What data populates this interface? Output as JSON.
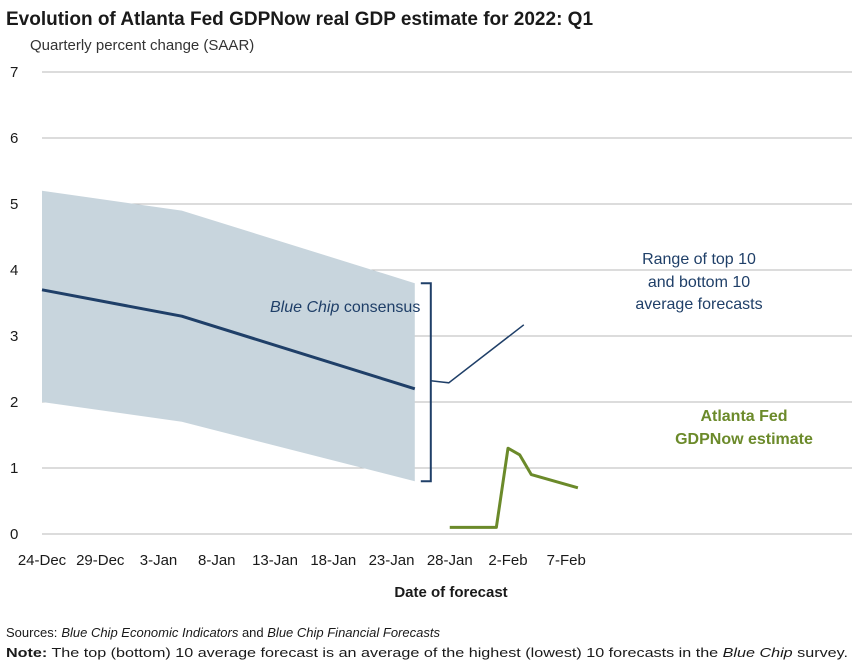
{
  "chart_data": {
    "type": "line",
    "title": "Evolution of Atlanta Fed GDPNow real GDP estimate for 2022: Q1",
    "subtitle": "Quarterly percent change (SAAR)",
    "xlabel": "Date of forecast",
    "ylabel": "",
    "ylim": [
      0,
      7
    ],
    "y_ticks": [
      "0",
      "1",
      "2",
      "3",
      "4",
      "5",
      "6",
      "7"
    ],
    "x_ticks": [
      "24-Dec",
      "29-Dec",
      "3-Jan",
      "8-Jan",
      "13-Jan",
      "18-Jan",
      "23-Jan",
      "28-Jan",
      "2-Feb",
      "7-Feb"
    ],
    "grid": true,
    "series": [
      {
        "name": "Blue Chip consensus",
        "color": "#1f3f68",
        "points": [
          {
            "x": "24-Dec",
            "y": 3.7
          },
          {
            "x": "5-Jan",
            "y": 3.3
          },
          {
            "x": "25-Jan",
            "y": 2.2
          }
        ]
      },
      {
        "name": "Range of top 10 and bottom 10 average forecasts",
        "type": "area",
        "color": "#c8d5dd",
        "upper": [
          {
            "x": "24-Dec",
            "y": 5.2
          },
          {
            "x": "5-Jan",
            "y": 4.9
          },
          {
            "x": "25-Jan",
            "y": 3.8
          }
        ],
        "lower": [
          {
            "x": "24-Dec",
            "y": 2.0
          },
          {
            "x": "5-Jan",
            "y": 1.7
          },
          {
            "x": "25-Jan",
            "y": 0.8
          }
        ]
      },
      {
        "name": "Atlanta Fed GDPNow estimate",
        "color": "#6b8a2a",
        "points": [
          {
            "x": "28-Jan",
            "y": 0.1
          },
          {
            "x": "1-Feb",
            "y": 0.1
          },
          {
            "x": "2-Feb",
            "y": 1.3
          },
          {
            "x": "3-Feb",
            "y": 1.2
          },
          {
            "x": "4-Feb",
            "y": 0.9
          },
          {
            "x": "8-Feb",
            "y": 0.7
          }
        ]
      }
    ],
    "annotations": {
      "consensus_italic": "Blue Chip",
      "consensus_rest": " consensus",
      "range_lines": [
        "Range of top 10",
        "and bottom 10",
        "average forecasts"
      ],
      "gdpnow_lines": [
        "Atlanta Fed",
        "GDPNow estimate"
      ]
    }
  },
  "footnotes": {
    "sources_label": "Sources:",
    "sources_italic_1": "Blue Chip Economic Indicators",
    "sources_and": " and ",
    "sources_italic_2": "Blue Chip Financial Forecasts",
    "note_label": "Note:",
    "note_text": " The top (bottom) 10 average forecast is an average of the highest (lowest) 10 forecasts in the ",
    "note_italic": "Blue Chip",
    "note_end": " survey."
  }
}
